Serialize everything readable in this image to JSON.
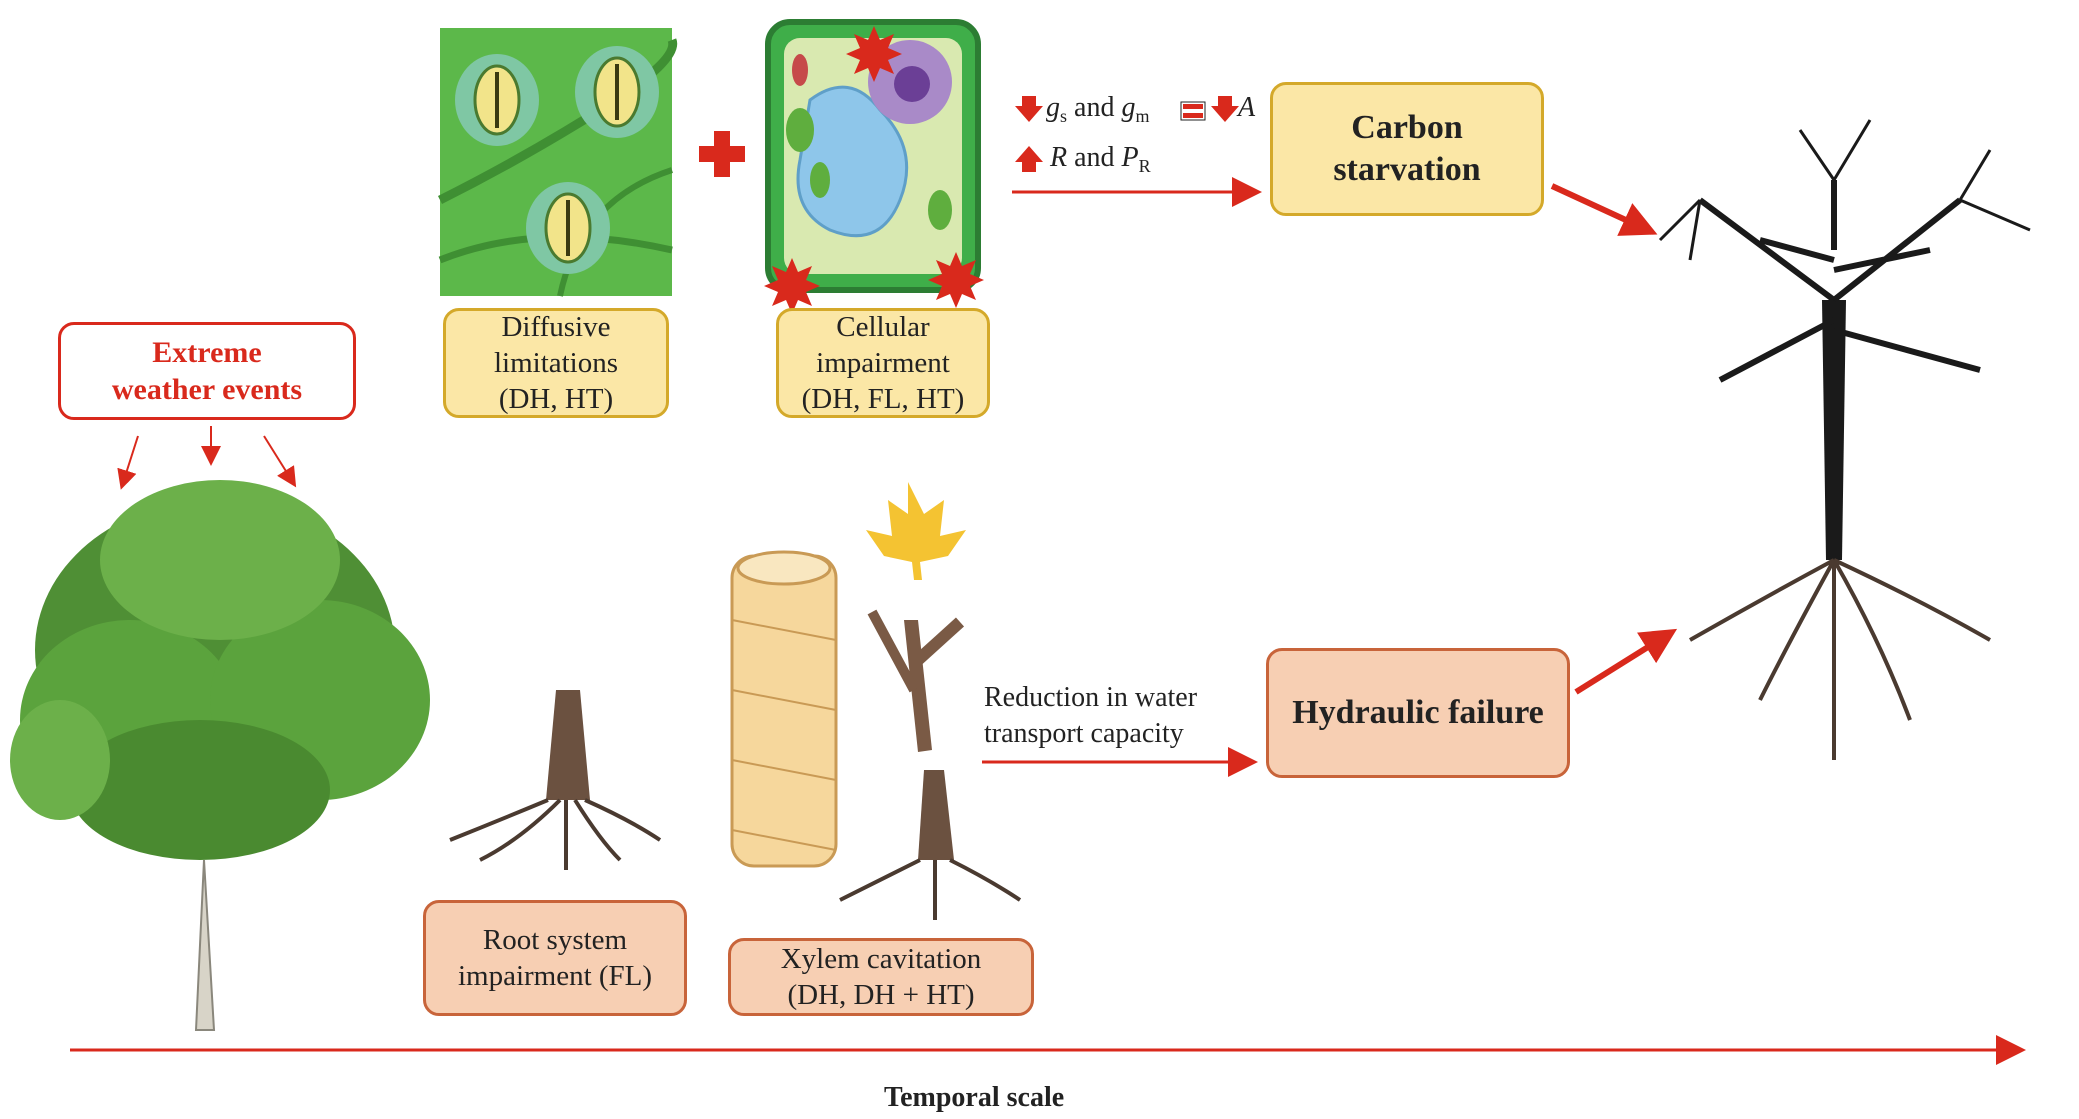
{
  "extreme": {
    "line1": "Extreme",
    "line2": "weather events"
  },
  "diffusive": {
    "line1": "Diffusive",
    "line2": "limitations",
    "line3": "(DH, HT)"
  },
  "cellular": {
    "line1": "Cellular",
    "line2": "impairment",
    "line3": "(DH, FL, HT)"
  },
  "photosynthesis": {
    "gs": "g",
    "gs_sub": "s",
    "and1": " and ",
    "gm": "g",
    "gm_sub": "m",
    "a": "A",
    "r": "R",
    "and2": " and ",
    "pr": "P",
    "pr_sub": "R"
  },
  "carbon": {
    "line1": "Carbon",
    "line2": "starvation"
  },
  "hydraulic": {
    "label": "Hydraulic failure"
  },
  "water_transport": {
    "line1": "Reduction in water",
    "line2": "transport capacity"
  },
  "root": {
    "line1": "Root system",
    "line2": "impairment (FL)"
  },
  "xylem": {
    "line1": "Xylem cavitation",
    "line2": "(DH, DH + HT)"
  },
  "temporal": {
    "label": "Temporal scale"
  },
  "colors": {
    "accent_red": "#d9291c",
    "yellow_box": "#fbe7a6",
    "salmon_box": "#f7cfb3",
    "leaf_green": "#5cb84a"
  }
}
